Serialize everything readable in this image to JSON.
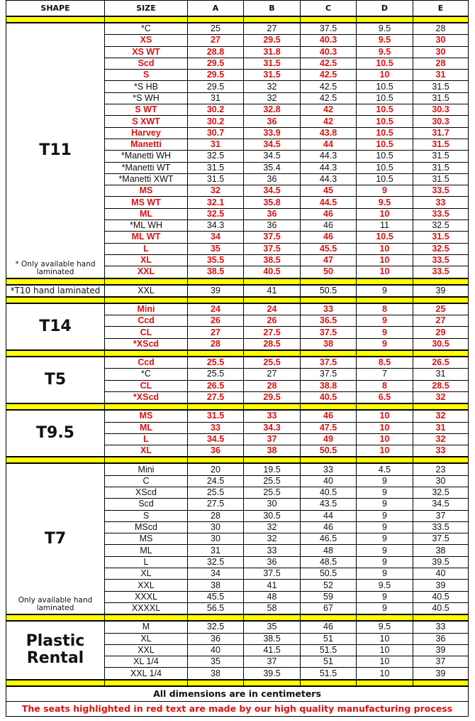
{
  "headers": [
    "SHAPE",
    "SIZE",
    "A",
    "B",
    "C",
    "D",
    "E"
  ],
  "colors": {
    "red": "#e01010",
    "separator": "#ffff00"
  },
  "groups": [
    {
      "shape": "T11",
      "note": "* Only available hand laminated",
      "rows": [
        [
          "*C",
          "25",
          "27",
          "37.5",
          "9.5",
          "28",
          false
        ],
        [
          "XS",
          "27",
          "29.5",
          "40.3",
          "9.5",
          "30",
          true
        ],
        [
          "XS WT",
          "28.8",
          "31.8",
          "40.3",
          "9.5",
          "30",
          true
        ],
        [
          "Scd",
          "29.5",
          "31.5",
          "42.5",
          "10.5",
          "28",
          true
        ],
        [
          "S",
          "29.5",
          "31.5",
          "42.5",
          "10",
          "31",
          true
        ],
        [
          "*S HB",
          "29.5",
          "32",
          "42.5",
          "10.5",
          "31.5",
          false
        ],
        [
          "*S WH",
          "31",
          "32",
          "42.5",
          "10.5",
          "31.5",
          false
        ],
        [
          "S WT",
          "30.2",
          "32.8",
          "42",
          "10.5",
          "30.3",
          true
        ],
        [
          "S XWT",
          "30.2",
          "36",
          "42",
          "10.5",
          "30.3",
          true
        ],
        [
          "Harvey",
          "30.7",
          "33.9",
          "43.8",
          "10.5",
          "31.7",
          true
        ],
        [
          "Manetti",
          "31",
          "34.5",
          "44",
          "10.5",
          "31.5",
          true
        ],
        [
          "*Manetti WH",
          "32.5",
          "34.5",
          "44.3",
          "10.5",
          "31.5",
          false
        ],
        [
          "*Manetti WT",
          "31.5",
          "35.4",
          "44.3",
          "10.5",
          "31.5",
          false
        ],
        [
          "*Manetti XWT",
          "31.5",
          "36",
          "44.3",
          "10.5",
          "31.5",
          false
        ],
        [
          "MS",
          "32",
          "34.5",
          "45",
          "9",
          "33.5",
          true
        ],
        [
          "MS WT",
          "32.1",
          "35.8",
          "44.5",
          "9.5",
          "33",
          true
        ],
        [
          "ML",
          "32.5",
          "36",
          "46",
          "10",
          "33.5",
          true
        ],
        [
          "*ML WH",
          "34.3",
          "36",
          "46",
          "11",
          "32.5",
          false
        ],
        [
          "ML WT",
          "34",
          "37.5",
          "46",
          "10.5",
          "31.5",
          true
        ],
        [
          "L",
          "35",
          "37.5",
          "45.5",
          "10",
          "32.5",
          true
        ],
        [
          "XL",
          "35.5",
          "38.5",
          "47",
          "10",
          "33.5",
          true
        ],
        [
          "XXL",
          "38.5",
          "40.5",
          "50",
          "10",
          "33.5",
          true
        ]
      ]
    },
    {
      "shape": "*T10 hand laminated",
      "small": true,
      "rows": [
        [
          "XXL",
          "39",
          "41",
          "50.5",
          "9",
          "39",
          false
        ]
      ]
    },
    {
      "shape": "T14",
      "rows": [
        [
          "Mini",
          "24",
          "24",
          "33",
          "8",
          "25",
          true
        ],
        [
          "Ccd",
          "26",
          "26",
          "36.5",
          "9",
          "27",
          true
        ],
        [
          "CL",
          "27",
          "27.5",
          "37.5",
          "9",
          "29",
          true
        ],
        [
          "*XScd",
          "28",
          "28.5",
          "38",
          "9",
          "30.5",
          true
        ]
      ]
    },
    {
      "shape": "T5",
      "rows": [
        [
          "Ccd",
          "25.5",
          "25.5",
          "37.5",
          "8.5",
          "26.5",
          true
        ],
        [
          "*C",
          "25.5",
          "27",
          "37.5",
          "7",
          "31",
          false
        ],
        [
          "CL",
          "26.5",
          "28",
          "38.8",
          "8",
          "28.5",
          true
        ],
        [
          "*XScd",
          "27.5",
          "29.5",
          "40.5",
          "6.5",
          "32",
          true
        ]
      ]
    },
    {
      "shape": "T9.5",
      "rows": [
        [
          "MS",
          "31.5",
          "33",
          "46",
          "10",
          "32",
          true
        ],
        [
          "ML",
          "33",
          "34.3",
          "47.5",
          "10",
          "31",
          true
        ],
        [
          "L",
          "34.5",
          "37",
          "49",
          "10",
          "32",
          true
        ],
        [
          "XL",
          "36",
          "38",
          "50.5",
          "10",
          "33",
          true
        ]
      ]
    },
    {
      "shape": "T7",
      "note": "Only available hand laminated",
      "rows": [
        [
          "Mini",
          "20",
          "19.5",
          "33",
          "4.5",
          "23",
          false
        ],
        [
          "C",
          "24.5",
          "25.5",
          "40",
          "9",
          "30",
          false
        ],
        [
          "XScd",
          "25.5",
          "25.5",
          "40.5",
          "9",
          "32.5",
          false
        ],
        [
          "Scd",
          "27.5",
          "30",
          "43.5",
          "9",
          "34.5",
          false
        ],
        [
          "S",
          "28",
          "30.5",
          "44",
          "9",
          "37",
          false
        ],
        [
          "MScd",
          "30",
          "32",
          "46",
          "9",
          "33.5",
          false
        ],
        [
          "MS",
          "30",
          "32",
          "46.5",
          "9",
          "37.5",
          false
        ],
        [
          "ML",
          "31",
          "33",
          "48",
          "9",
          "38",
          false
        ],
        [
          "L",
          "32.5",
          "36",
          "48.5",
          "9",
          "39.5",
          false
        ],
        [
          "XL",
          "34",
          "37.5",
          "50.5",
          "9",
          "40",
          false
        ],
        [
          "XXL",
          "38",
          "41",
          "52",
          "9.5",
          "39",
          false
        ],
        [
          "XXXL",
          "45.5",
          "48",
          "59",
          "9",
          "40.5",
          false
        ],
        [
          "XXXXL",
          "56.5",
          "58",
          "67",
          "9",
          "40.5",
          false
        ]
      ]
    },
    {
      "shape": "Plastic Rental",
      "rows": [
        [
          "M",
          "32.5",
          "35",
          "46",
          "9.5",
          "33",
          false
        ],
        [
          "XL",
          "36",
          "38.5",
          "51",
          "10",
          "36",
          false
        ],
        [
          "XXL",
          "40",
          "41.5",
          "51.5",
          "10",
          "39",
          false
        ],
        [
          "XL 1/4",
          "35",
          "37",
          "51",
          "10",
          "37",
          false
        ],
        [
          "XXL 1/4",
          "38",
          "39.5",
          "51.5",
          "10",
          "39",
          false
        ]
      ]
    }
  ],
  "footer": {
    "units": "All dimensions are in centimeters",
    "red_note": "The seats highlighted in red text are made by our high quality manufacturing process"
  }
}
